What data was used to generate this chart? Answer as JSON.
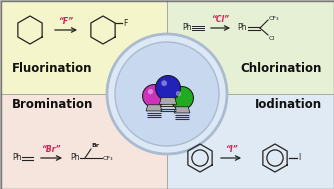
{
  "bg_top_left": "#f5f5cc",
  "bg_top_right": "#e6f0d5",
  "bg_bot_left": "#f5e5dc",
  "bg_bot_right": "#e0eaf5",
  "border_color": "#999999",
  "title_fluorination": "Fluorination",
  "title_chlorination": "Chlorination",
  "title_bromination": "Bromination",
  "title_iodination": "Iodination",
  "label_F": "“F”",
  "label_Cl": "“Cl”",
  "label_Br": "“Br”",
  "label_I": "“I”",
  "label_color": "#cc2255",
  "bulb_blue": "#2222bb",
  "bulb_pink": "#cc33bb",
  "bulb_green": "#22aa22",
  "circle_outer_bg": "#dce8f5",
  "circle_outer_border": "#aabbd0",
  "circle_inner_bg": "#c8d8ee",
  "title_fontsize": 8.5,
  "struct_color": "#222222",
  "arrow_color": "#222222",
  "figw": 3.34,
  "figh": 1.89,
  "dpi": 100
}
